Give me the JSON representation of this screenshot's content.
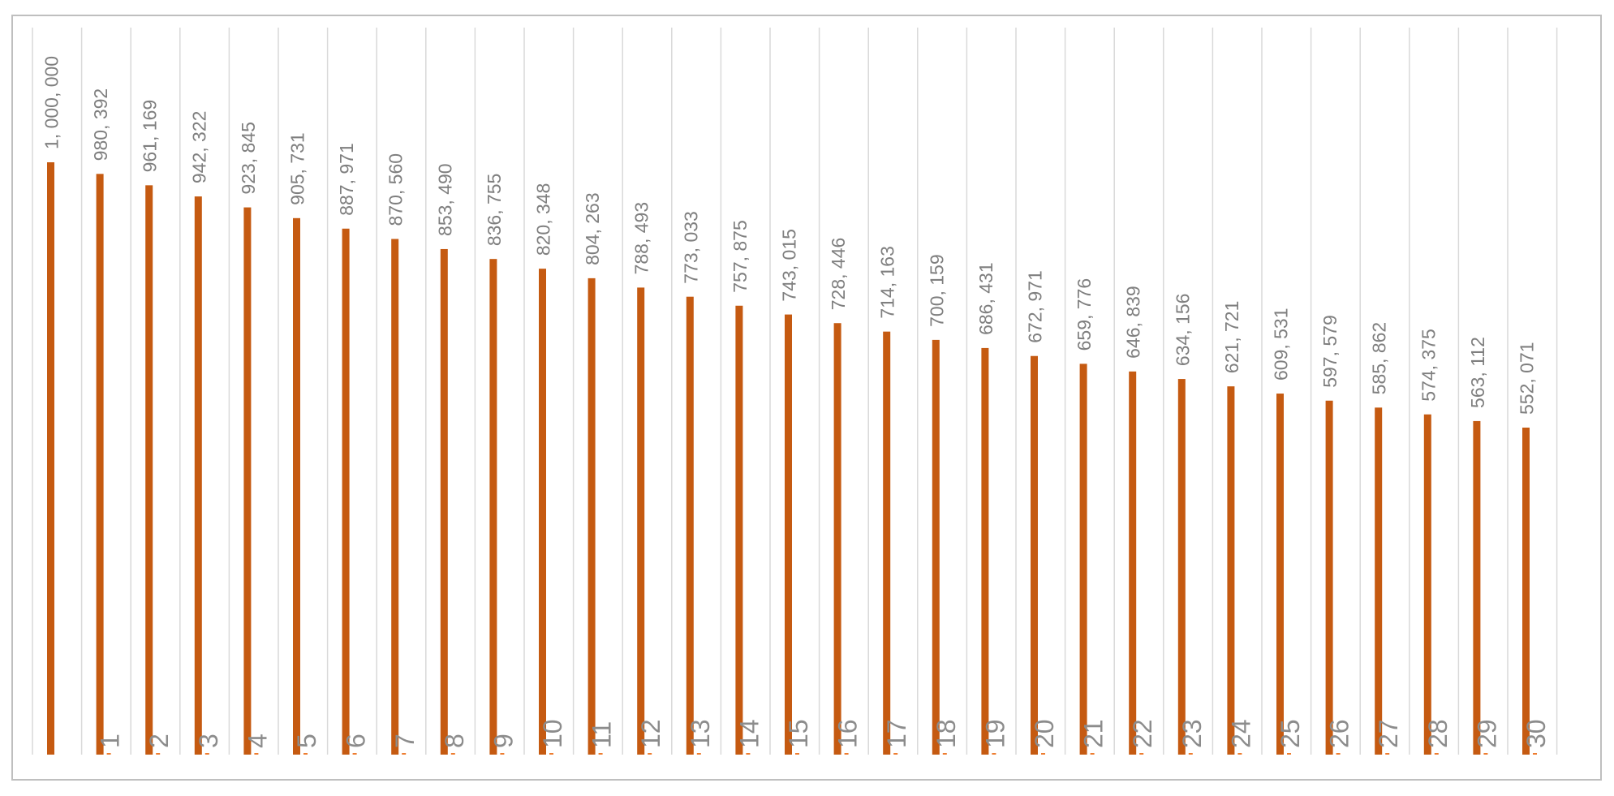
{
  "chart_data": {
    "type": "bar",
    "title": "",
    "xlabel": "",
    "ylabel": "",
    "grid": true,
    "legend": "none",
    "ylim": [
      0,
      1000000
    ],
    "categories": [
      "",
      "1",
      "2",
      "3",
      "4",
      "5",
      "6",
      "7",
      "8",
      "9",
      "10",
      "11",
      "12",
      "13",
      "14",
      "15",
      "16",
      "17",
      "18",
      "19",
      "20",
      "21",
      "22",
      "23",
      "24",
      "25",
      "26",
      "27",
      "28",
      "29",
      "30"
    ],
    "series": [
      {
        "color": "#c55a11",
        "values": [
          1000000,
          980392,
          961169,
          942322,
          923845,
          905731,
          887971,
          870560,
          853490,
          836755,
          820348,
          804263,
          788493,
          773033,
          757875,
          743015,
          728446,
          714163,
          700159,
          686431,
          672971,
          659776,
          646839,
          634156,
          621721,
          609531,
          597579,
          585862,
          574375,
          563112,
          552071
        ],
        "labels": [
          "1, 000, 000",
          "980, 392",
          "961, 169",
          "942, 322",
          "923, 845",
          "905, 731",
          "887, 971",
          "870, 560",
          "853, 490",
          "836, 755",
          "820, 348",
          "804, 263",
          "788, 493",
          "773, 033",
          "757, 875",
          "743, 015",
          "728, 446",
          "714, 163",
          "700, 159",
          "686, 431",
          "672, 971",
          "659, 776",
          "646, 839",
          "634, 156",
          "621, 721",
          "609, 531",
          "597, 579",
          "585, 862",
          "574, 375",
          "563, 112",
          "552, 071"
        ]
      },
      {
        "color": "#ed7d31",
        "values": [
          0,
          2,
          2,
          2,
          2,
          2,
          2,
          2,
          2,
          2,
          2,
          2,
          2,
          2,
          2,
          2,
          2,
          2,
          2,
          2,
          2,
          2,
          2,
          2,
          2,
          2,
          2,
          2,
          2,
          2,
          2
        ]
      }
    ]
  }
}
